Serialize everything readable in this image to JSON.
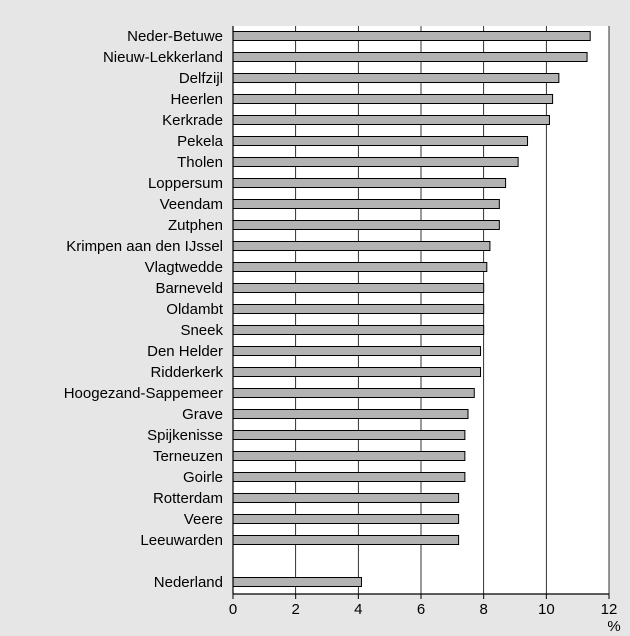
{
  "chart_data": {
    "type": "bar",
    "orientation": "horizontal",
    "title": "",
    "xlabel": "",
    "ylabel": "",
    "unit": "%",
    "xlim": [
      0,
      12
    ],
    "xticks": [
      0,
      2,
      4,
      6,
      8,
      10,
      12
    ],
    "grid": "vertical",
    "categories": [
      "Neder-Betuwe",
      "Nieuw-Lekkerland",
      "Delfzijl",
      "Heerlen",
      "Kerkrade",
      "Pekela",
      "Tholen",
      "Loppersum",
      "Veendam",
      "Zutphen",
      "Krimpen aan den IJssel",
      "Vlagtwedde",
      "Barneveld",
      "Oldambt",
      "Sneek",
      "Den Helder",
      "Ridderkerk",
      "Hoogezand-Sappemeer",
      "Grave",
      "Spijkenisse",
      "Terneuzen",
      "Goirle",
      "Rotterdam",
      "Veere",
      "Leeuwarden",
      "Nederland"
    ],
    "values": [
      11.4,
      11.3,
      10.4,
      10.2,
      10.1,
      9.4,
      9.1,
      8.7,
      8.5,
      8.5,
      8.2,
      8.1,
      8.0,
      8.0,
      8.0,
      7.9,
      7.9,
      7.7,
      7.5,
      7.4,
      7.4,
      7.4,
      7.2,
      7.2,
      7.2,
      4.1
    ],
    "colors": {
      "bar_fill": "#b3b3b3",
      "bar_stroke": "#000000",
      "plot_background": "#ffffff",
      "frame_background": "#e6e6e6",
      "gridline": "#000000"
    }
  }
}
